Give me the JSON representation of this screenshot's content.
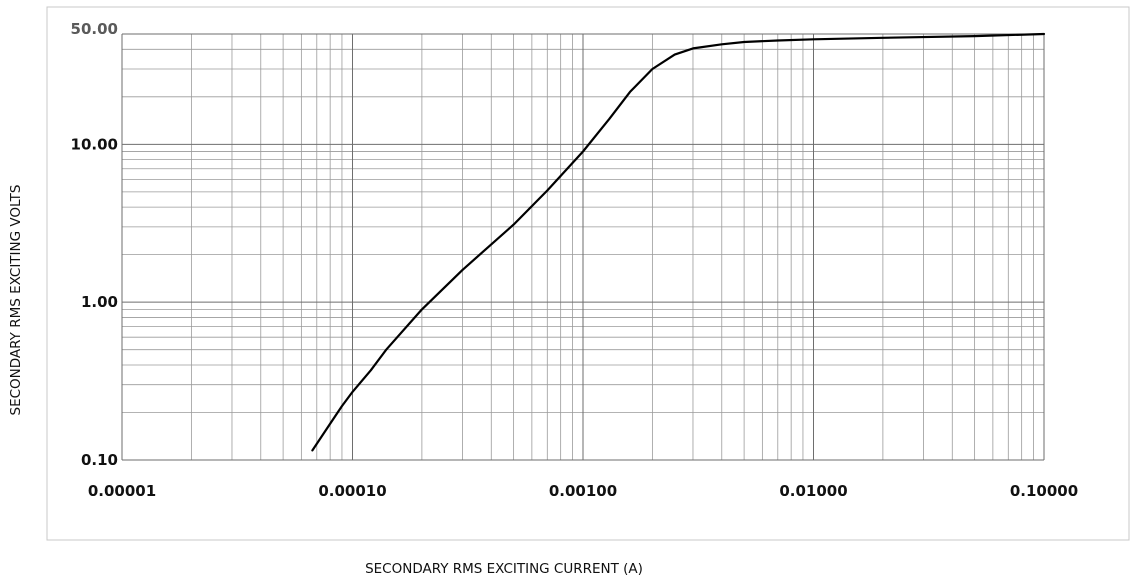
{
  "chart_data": {
    "type": "line",
    "title": "",
    "xlabel": "SECONDARY RMS EXCITING CURRENT (A)",
    "ylabel": "SECONDARY RMS EXCITING VOLTS",
    "x_scale": "log",
    "y_scale": "log",
    "xlim": [
      1e-05,
      0.1
    ],
    "ylim": [
      0.1,
      50
    ],
    "x_ticks": [
      1e-05,
      0.0001,
      0.001,
      0.01,
      0.1
    ],
    "x_tick_labels": [
      "0.00001",
      "0.00010",
      "0.00100",
      "0.01000",
      "0.10000"
    ],
    "y_ticks": [
      0.1,
      1,
      10,
      50
    ],
    "y_tick_labels": [
      "0.10",
      "1.00",
      "10.00",
      "50.00"
    ],
    "grid": true,
    "legend": "none",
    "series": [
      {
        "color": "#000000",
        "x": [
          6.7e-05,
          8e-05,
          9e-05,
          0.0001,
          0.00012,
          0.00014,
          0.0002,
          0.0003,
          0.0005,
          0.0007,
          0.001,
          0.0013,
          0.0016,
          0.002,
          0.0025,
          0.003,
          0.004,
          0.005,
          0.007,
          0.01,
          0.02,
          0.05,
          0.1
        ],
        "y": [
          0.115,
          0.17,
          0.22,
          0.27,
          0.37,
          0.5,
          0.9,
          1.6,
          3.1,
          5.1,
          9.0,
          14.5,
          21.5,
          30.0,
          37.0,
          40.5,
          43.0,
          44.5,
          45.5,
          46.3,
          47.3,
          48.5,
          50.0
        ]
      }
    ]
  }
}
